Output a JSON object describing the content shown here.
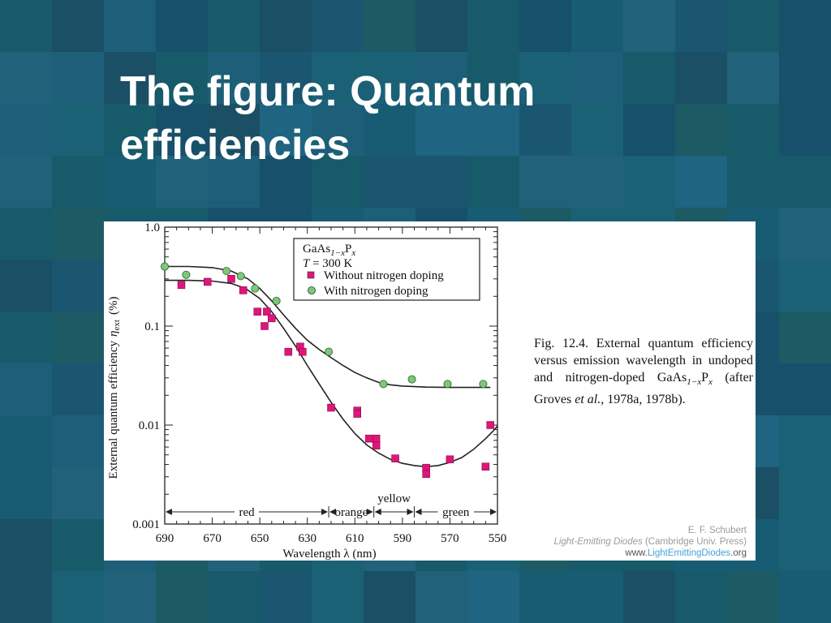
{
  "slide": {
    "title_line1": "The figure: Quantum",
    "title_line2": "efficiencies"
  },
  "caption": {
    "fig_label": "Fig. 12.4.",
    "text_a": "External quantum efficiency versus emission wavelength in undoped and nitrogen-doped",
    "compound_base": "GaAs",
    "compound_sub": "1−x",
    "compound_p": "P",
    "compound_psub": "x",
    "text_b": "(after Groves",
    "etal": "et al.",
    "text_c": ", 1978a, 1978b)."
  },
  "credit": {
    "author": "E. F. Schubert",
    "book": "Light-Emitting Diodes",
    "publisher": "(Cambridge Univ. Press)",
    "url_prefix": "www.",
    "url_brand": "LightEmittingDiodes",
    "url_suffix": ".org"
  },
  "colors": {
    "without_nitrogen": "#e0157a",
    "with_nitrogen": "#7dc87a",
    "curve": "#222222"
  },
  "chart_data": {
    "type": "scatter",
    "title": "",
    "xlabel": "Wavelength λ (nm)",
    "ylabel": "External quantum efficiency η_ext (%)",
    "ylabel_main": "External quantum efficiency",
    "ylabel_eta": "η",
    "ylabel_sub": "ext",
    "ylabel_unit": "(%)",
    "x_reversed": true,
    "xlim": [
      690,
      550
    ],
    "ylim": [
      0.001,
      1.0
    ],
    "y_scale": "log",
    "x_ticks": [
      690,
      670,
      650,
      630,
      610,
      590,
      570,
      550
    ],
    "y_ticks": [
      {
        "value": 1.0,
        "label": "1.0"
      },
      {
        "value": 0.1,
        "label": "0.1"
      },
      {
        "value": 0.01,
        "label": "0.01"
      },
      {
        "value": 0.001,
        "label": "0.001"
      }
    ],
    "legend": {
      "placement": "top-right",
      "material_base": "GaAs",
      "material_sub": "1−x",
      "material_p": "P",
      "material_psub": "x",
      "temperature": "T = 300 K",
      "temperature_var": "T",
      "temperature_rest": " = 300 K"
    },
    "series": [
      {
        "name": "Without nitrogen doping",
        "marker": "square",
        "points": [
          [
            683,
            0.26
          ],
          [
            672,
            0.28
          ],
          [
            662,
            0.3
          ],
          [
            657,
            0.23
          ],
          [
            651,
            0.14
          ],
          [
            647,
            0.14
          ],
          [
            645,
            0.12
          ],
          [
            648,
            0.1
          ],
          [
            638,
            0.055
          ],
          [
            633,
            0.062
          ],
          [
            632,
            0.055
          ],
          [
            620,
            0.015
          ],
          [
            609,
            0.014
          ],
          [
            609,
            0.013
          ],
          [
            604,
            0.0073
          ],
          [
            601,
            0.0073
          ],
          [
            601,
            0.0062
          ],
          [
            593,
            0.0046
          ],
          [
            580,
            0.0037
          ],
          [
            580,
            0.0032
          ],
          [
            570,
            0.0045
          ],
          [
            555,
            0.0038
          ],
          [
            553,
            0.01
          ]
        ]
      },
      {
        "name": "With nitrogen doping",
        "marker": "circle",
        "points": [
          [
            690,
            0.4
          ],
          [
            681,
            0.33
          ],
          [
            664,
            0.36
          ],
          [
            658,
            0.32
          ],
          [
            652,
            0.24
          ],
          [
            643,
            0.18
          ],
          [
            621,
            0.055
          ],
          [
            598,
            0.026
          ],
          [
            586,
            0.029
          ],
          [
            571,
            0.026
          ],
          [
            556,
            0.026
          ]
        ]
      }
    ],
    "fit_curves": [
      {
        "for": "Without nitrogen doping",
        "points": [
          [
            690,
            0.29
          ],
          [
            680,
            0.29
          ],
          [
            670,
            0.285
          ],
          [
            662,
            0.27
          ],
          [
            656,
            0.24
          ],
          [
            650,
            0.19
          ],
          [
            645,
            0.14
          ],
          [
            640,
            0.095
          ],
          [
            635,
            0.063
          ],
          [
            630,
            0.04
          ],
          [
            625,
            0.026
          ],
          [
            620,
            0.017
          ],
          [
            615,
            0.0115
          ],
          [
            610,
            0.0082
          ],
          [
            605,
            0.0063
          ],
          [
            600,
            0.0052
          ],
          [
            595,
            0.0045
          ],
          [
            590,
            0.0041
          ],
          [
            585,
            0.0039
          ],
          [
            580,
            0.0038
          ],
          [
            575,
            0.0039
          ],
          [
            570,
            0.0042
          ],
          [
            565,
            0.0047
          ],
          [
            560,
            0.0057
          ],
          [
            555,
            0.0073
          ],
          [
            552,
            0.0086
          ],
          [
            550,
            0.0098
          ]
        ]
      },
      {
        "for": "With nitrogen doping",
        "points": [
          [
            690,
            0.4
          ],
          [
            680,
            0.4
          ],
          [
            670,
            0.39
          ],
          [
            662,
            0.36
          ],
          [
            655,
            0.3
          ],
          [
            650,
            0.24
          ],
          [
            645,
            0.18
          ],
          [
            640,
            0.13
          ],
          [
            635,
            0.095
          ],
          [
            630,
            0.072
          ],
          [
            625,
            0.058
          ],
          [
            620,
            0.048
          ],
          [
            615,
            0.04
          ],
          [
            610,
            0.034
          ],
          [
            605,
            0.03
          ],
          [
            600,
            0.027
          ],
          [
            595,
            0.0255
          ],
          [
            590,
            0.0248
          ],
          [
            580,
            0.0242
          ],
          [
            570,
            0.024
          ],
          [
            560,
            0.024
          ],
          [
            553,
            0.024
          ]
        ]
      }
    ],
    "color_bands": [
      {
        "label": "red",
        "from": 690,
        "to": 621
      },
      {
        "label": "orange",
        "from": 621,
        "to": 602
      },
      {
        "label": "yellow",
        "from": 602,
        "to": 585
      },
      {
        "label": "green",
        "from": 585,
        "to": 550
      }
    ]
  }
}
